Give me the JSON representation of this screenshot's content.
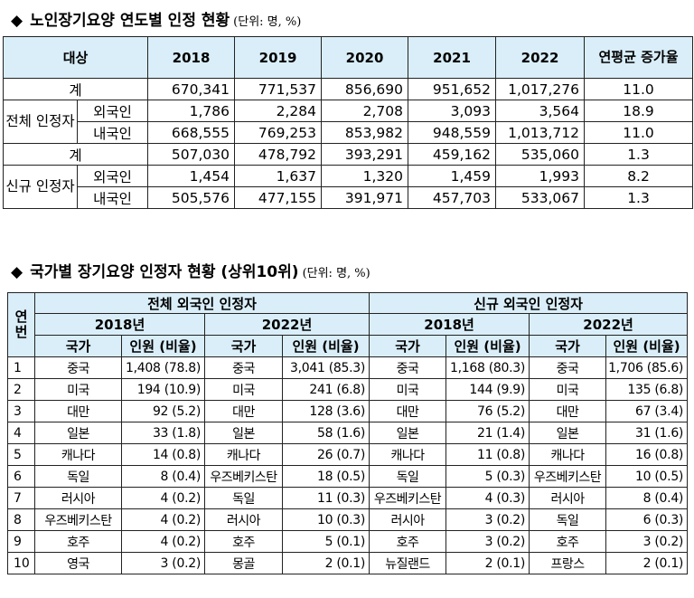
{
  "section1": {
    "bullet": "◆",
    "title": "노인장기요양 연도별 인정 현황",
    "unit": "(단위: 명, %)",
    "header": {
      "subject": "대상",
      "years": [
        "2018",
        "2019",
        "2020",
        "2021",
        "2022"
      ],
      "avg_growth": "연평균 증가율"
    },
    "groups": [
      {
        "name": "전체 인정자",
        "rows": [
          {
            "label": "계",
            "values": [
              "670,341",
              "771,537",
              "856,690",
              "951,652",
              "1,017,276"
            ],
            "avg": "11.0"
          },
          {
            "label": "외국인",
            "values": [
              "1,786",
              "2,284",
              "2,708",
              "3,093",
              "3,564"
            ],
            "avg": "18.9"
          },
          {
            "label": "내국인",
            "values": [
              "668,555",
              "769,253",
              "853,982",
              "948,559",
              "1,013,712"
            ],
            "avg": "11.0"
          }
        ]
      },
      {
        "name": "신규 인정자",
        "rows": [
          {
            "label": "계",
            "values": [
              "507,030",
              "478,792",
              "393,291",
              "459,162",
              "535,060"
            ],
            "avg": "1.3"
          },
          {
            "label": "외국인",
            "values": [
              "1,454",
              "1,637",
              "1,320",
              "1,459",
              "1,993"
            ],
            "avg": "8.2"
          },
          {
            "label": "내국인",
            "values": [
              "505,576",
              "477,155",
              "391,971",
              "457,703",
              "533,067"
            ],
            "avg": "1.3"
          }
        ]
      }
    ]
  },
  "section2": {
    "bullet": "◆",
    "title": "국가별 장기요양 인정자 현황 (상위10위)",
    "unit": "(단위: 명, %)",
    "header": {
      "rank": "연번",
      "group_total": "전체 외국인 인정자",
      "group_new": "신규 외국인 인정자",
      "year_2018": "2018년",
      "year_2022": "2022년",
      "country": "국가",
      "count": "인원 (비율)"
    },
    "rows": [
      {
        "rank": "1",
        "cells": [
          "중국",
          "1,408 (78.8)",
          "중국",
          "3,041 (85.3)",
          "중국",
          "1,168 (80.3)",
          "중국",
          "1,706 (85.6)"
        ]
      },
      {
        "rank": "2",
        "cells": [
          "미국",
          "194 (10.9)",
          "미국",
          "241 (6.8)",
          "미국",
          "144 (9.9)",
          "미국",
          "135 (6.8)"
        ]
      },
      {
        "rank": "3",
        "cells": [
          "대만",
          "92 (5.2)",
          "대만",
          "128 (3.6)",
          "대만",
          "76 (5.2)",
          "대만",
          "67 (3.4)"
        ]
      },
      {
        "rank": "4",
        "cells": [
          "일본",
          "33 (1.8)",
          "일본",
          "58 (1.6)",
          "일본",
          "21 (1.4)",
          "일본",
          "31 (1.6)"
        ]
      },
      {
        "rank": "5",
        "cells": [
          "캐나다",
          "14 (0.8)",
          "캐나다",
          "26 (0.7)",
          "캐나다",
          "11 (0.8)",
          "캐나다",
          "16 (0.8)"
        ]
      },
      {
        "rank": "6",
        "cells": [
          "독일",
          "8 (0.4)",
          "우즈베키스탄",
          "18 (0.5)",
          "독일",
          "5 (0.3)",
          "우즈베키스탄",
          "10 (0.5)"
        ]
      },
      {
        "rank": "7",
        "cells": [
          "러시아",
          "4 (0.2)",
          "독일",
          "11 (0.3)",
          "우즈베키스탄",
          "4 (0.3)",
          "러시아",
          "8 (0.4)"
        ]
      },
      {
        "rank": "8",
        "cells": [
          "우즈베키스탄",
          "4 (0.2)",
          "러시아",
          "10 (0.3)",
          "러시아",
          "3 (0.2)",
          "독일",
          "6 (0.3)"
        ]
      },
      {
        "rank": "9",
        "cells": [
          "호주",
          "4 (0.2)",
          "호주",
          "5 (0.1)",
          "호주",
          "3 (0.2)",
          "호주",
          "3 (0.2)"
        ]
      },
      {
        "rank": "10",
        "cells": [
          "영국",
          "3 (0.2)",
          "몽골",
          "2 (0.1)",
          "뉴질랜드",
          "2 (0.1)",
          "프랑스",
          "2 (0.1)"
        ]
      }
    ]
  }
}
